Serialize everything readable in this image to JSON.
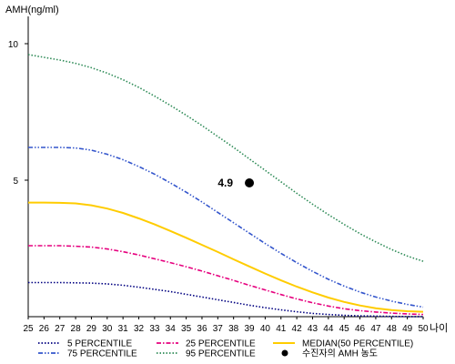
{
  "chart_data": {
    "type": "line",
    "ylabel": "AMH(ng/ml)",
    "xlabel": "나이",
    "x": [
      25,
      26,
      27,
      28,
      29,
      30,
      31,
      32,
      33,
      34,
      35,
      36,
      37,
      38,
      39,
      40,
      41,
      42,
      43,
      44,
      45,
      46,
      47,
      48,
      49,
      50
    ],
    "xlim": [
      25,
      50
    ],
    "ylim": [
      0,
      11
    ],
    "yticks": [
      5,
      10
    ],
    "grid": false,
    "legend_position": "bottom",
    "series": [
      {
        "name": "5 PERCENTILE",
        "color": "#000080",
        "dash": "dotted",
        "values": [
          1.25,
          1.25,
          1.25,
          1.24,
          1.23,
          1.2,
          1.15,
          1.08,
          1.0,
          0.92,
          0.82,
          0.72,
          0.62,
          0.52,
          0.42,
          0.33,
          0.25,
          0.18,
          0.12,
          0.08,
          0.05,
          0.03,
          0.02,
          0.01,
          0.005,
          0.0
        ]
      },
      {
        "name": "25 PERCENTILE",
        "color": "#e6007e",
        "dash": "dashdot",
        "values": [
          2.6,
          2.6,
          2.6,
          2.58,
          2.55,
          2.48,
          2.38,
          2.26,
          2.12,
          1.98,
          1.83,
          1.67,
          1.5,
          1.33,
          1.15,
          0.98,
          0.81,
          0.65,
          0.51,
          0.39,
          0.29,
          0.22,
          0.17,
          0.13,
          0.1,
          0.08
        ]
      },
      {
        "name": "MEDIAN(50 PERCENTILE)",
        "color": "#ffcc00",
        "dash": "solid",
        "values": [
          4.18,
          4.18,
          4.17,
          4.15,
          4.08,
          3.96,
          3.8,
          3.6,
          3.38,
          3.14,
          2.89,
          2.63,
          2.37,
          2.1,
          1.84,
          1.58,
          1.33,
          1.1,
          0.89,
          0.7,
          0.54,
          0.41,
          0.31,
          0.24,
          0.2,
          0.18
        ]
      },
      {
        "name": "75 PERCENTILE",
        "color": "#3355cc",
        "dash": "dashdotdot",
        "values": [
          6.2,
          6.2,
          6.2,
          6.18,
          6.1,
          5.95,
          5.75,
          5.5,
          5.22,
          4.9,
          4.56,
          4.2,
          3.82,
          3.44,
          3.06,
          2.68,
          2.32,
          1.98,
          1.66,
          1.37,
          1.12,
          0.9,
          0.72,
          0.57,
          0.45,
          0.35
        ]
      },
      {
        "name": "95 PERCENTILE",
        "color": "#2e8b57",
        "dash": "dotted",
        "values": [
          9.6,
          9.5,
          9.4,
          9.28,
          9.12,
          8.92,
          8.68,
          8.4,
          8.08,
          7.74,
          7.38,
          7.0,
          6.6,
          6.2,
          5.78,
          5.36,
          4.94,
          4.52,
          4.12,
          3.74,
          3.38,
          3.04,
          2.74,
          2.46,
          2.22,
          2.03
        ]
      }
    ],
    "marker": {
      "label": "수진자의 AMH 농도",
      "x": 39,
      "y": 4.9,
      "annotation": "4.9",
      "color": "#000000"
    }
  }
}
